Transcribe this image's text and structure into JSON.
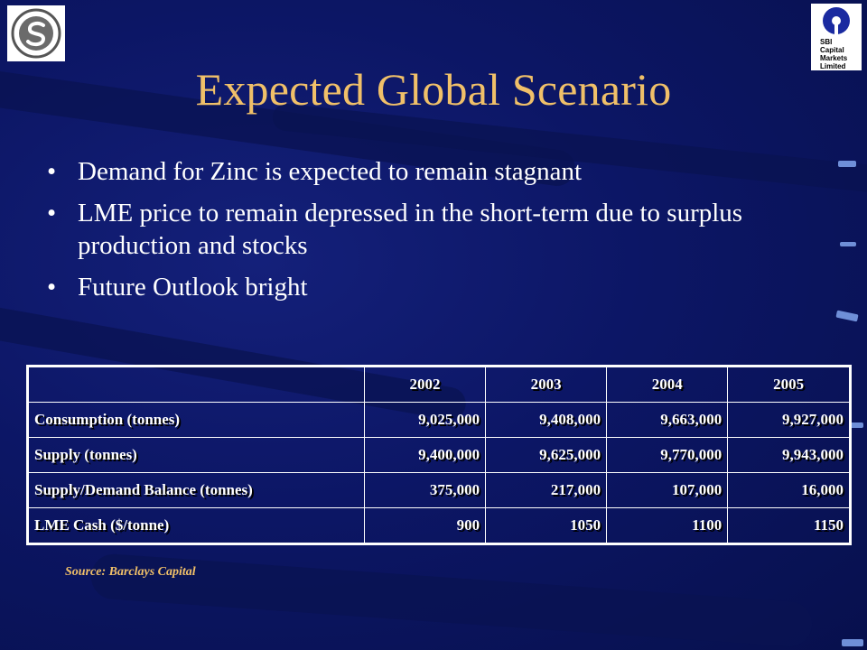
{
  "title": "Expected Global Scenario",
  "bullets": [
    "Demand for Zinc is expected to remain stagnant",
    "LME price to remain depressed in the short-term due to surplus production and stocks",
    "Future Outlook bright"
  ],
  "bullet_symbol": "•",
  "table": {
    "years": [
      "2002",
      "2003",
      "2004",
      "2005"
    ],
    "rows": [
      {
        "label": "Consumption (tonnes)",
        "values": [
          "9,025,000",
          "9,408,000",
          "9,663,000",
          "9,927,000"
        ]
      },
      {
        "label": "Supply (tonnes)",
        "values": [
          "9,400,000",
          "9,625,000",
          "9,770,000",
          "9,943,000"
        ]
      },
      {
        "label": "Supply/Demand Balance (tonnes)",
        "values": [
          "375,000",
          "217,000",
          "107,000",
          "16,000"
        ]
      },
      {
        "label": "LME Cash ($/tonne)",
        "values": [
          "900",
          "1050",
          "1100",
          "1150"
        ]
      }
    ]
  },
  "source": "Source: Barclays Capital",
  "logos": {
    "left_icon": "sterlite-logo",
    "right_icon": "sbi-logo",
    "right_text": "SBI\nCapital\nMarkets\nLimited"
  },
  "colors": {
    "background": "#0c1665",
    "title": "#f0c069",
    "text": "#ffffff",
    "source": "#f0c069"
  }
}
